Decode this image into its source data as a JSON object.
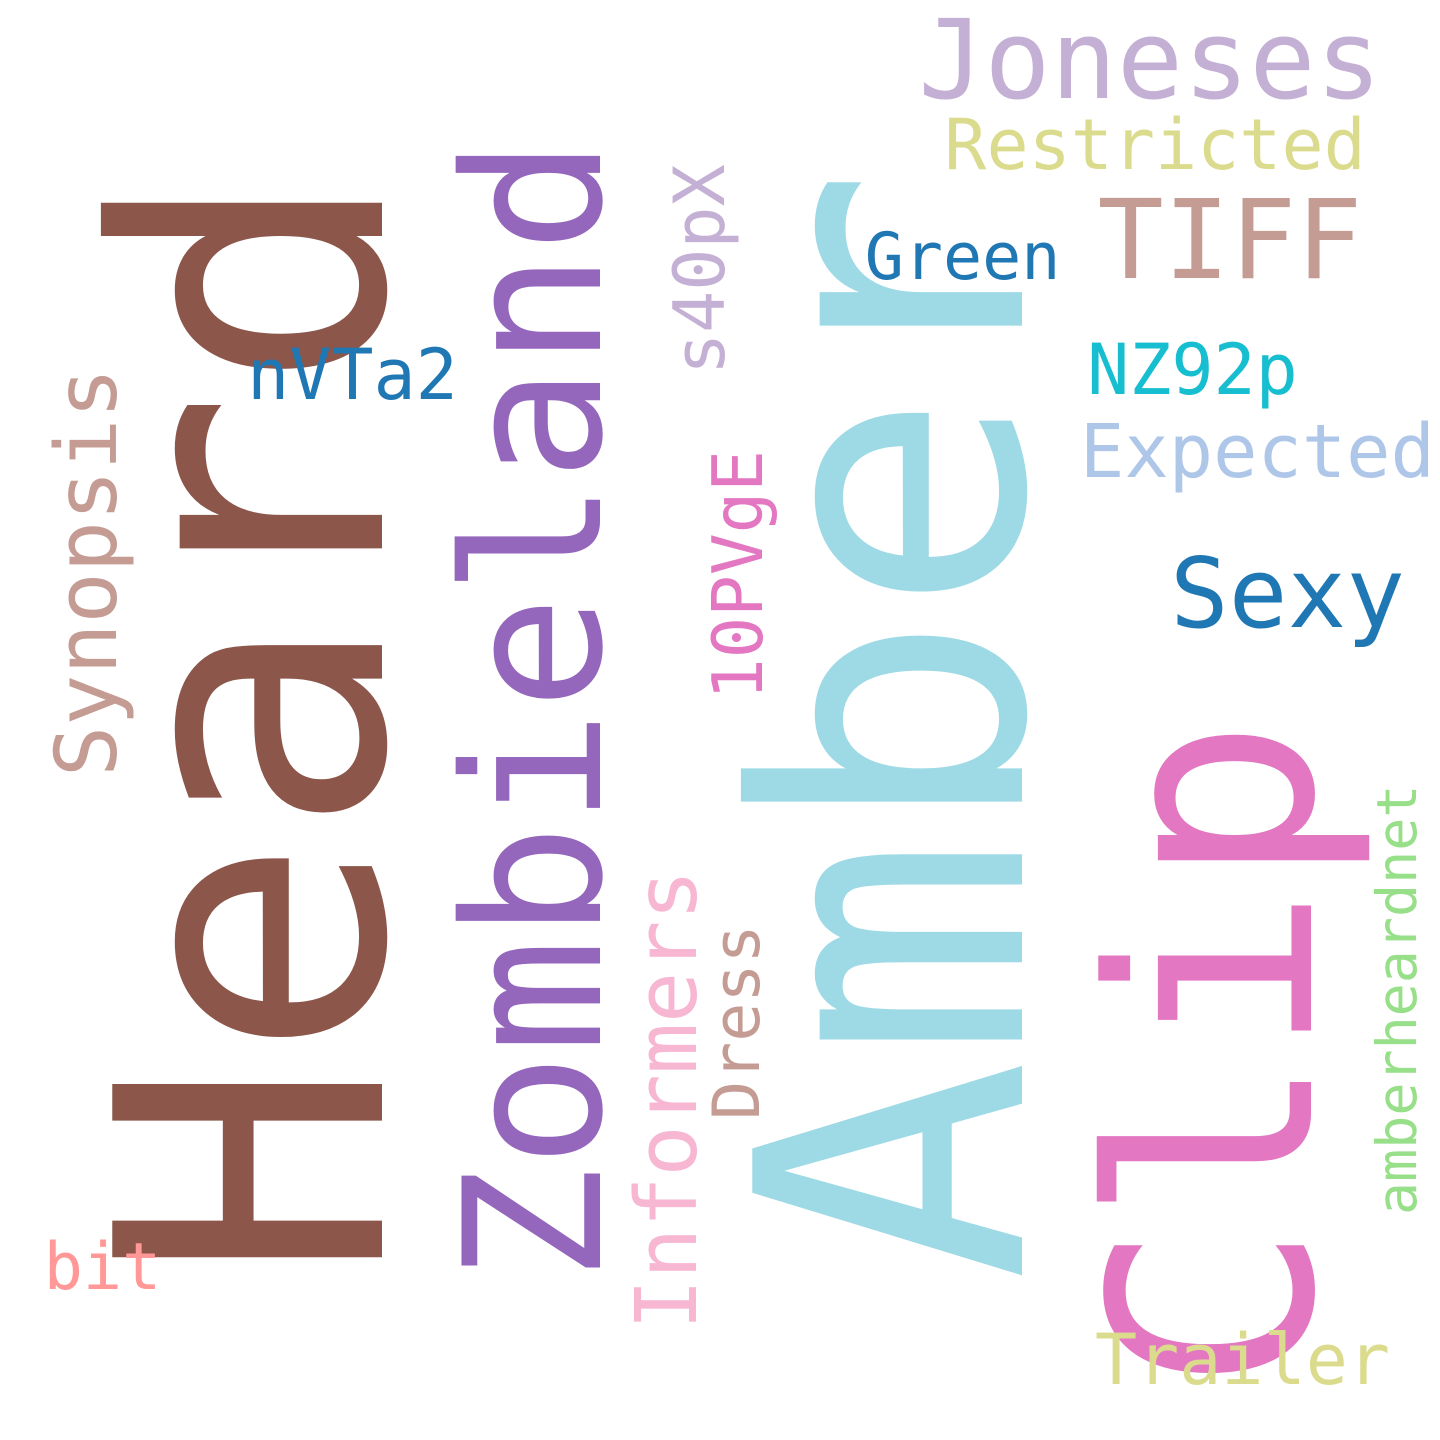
{
  "background_color": "#ffffff",
  "words": [
    {
      "id": "heard",
      "text": "Heard",
      "color": "#8c564b",
      "orientation": "vertical"
    },
    {
      "id": "amber",
      "text": "Amber",
      "color": "#9edae5",
      "orientation": "vertical"
    },
    {
      "id": "zombieland",
      "text": "Zombieland",
      "color": "#9467bd",
      "orientation": "vertical"
    },
    {
      "id": "clip",
      "text": "Clip",
      "color": "#e377c2",
      "orientation": "vertical"
    },
    {
      "id": "joneses",
      "text": "Joneses",
      "color": "#c5b0d5",
      "orientation": "horizontal"
    },
    {
      "id": "restricted",
      "text": "Restricted",
      "color": "#dbdb8d",
      "orientation": "horizontal"
    },
    {
      "id": "tiff",
      "text": "TIFF",
      "color": "#c49c94",
      "orientation": "horizontal"
    },
    {
      "id": "green",
      "text": "Green",
      "color": "#1f77b4",
      "orientation": "horizontal"
    },
    {
      "id": "s40px",
      "text": "s40pX",
      "color": "#c5b0d5",
      "orientation": "vertical"
    },
    {
      "id": "nvta2",
      "text": "nVTa2",
      "color": "#1f77b4",
      "orientation": "horizontal"
    },
    {
      "id": "nz92p",
      "text": "NZ92p",
      "color": "#17becf",
      "orientation": "horizontal"
    },
    {
      "id": "expected",
      "text": "Expected",
      "color": "#aec7e8",
      "orientation": "horizontal"
    },
    {
      "id": "synopsis",
      "text": "Synopsis",
      "color": "#c49c94",
      "orientation": "vertical"
    },
    {
      "id": "10pvge",
      "text": "10PVgE",
      "color": "#e377c2",
      "orientation": "vertical"
    },
    {
      "id": "sexy",
      "text": "Sexy",
      "color": "#1f77b4",
      "orientation": "horizontal"
    },
    {
      "id": "informers",
      "text": "Informers",
      "color": "#f7b6d2",
      "orientation": "vertical"
    },
    {
      "id": "dress",
      "text": "Dress",
      "color": "#c49c94",
      "orientation": "vertical"
    },
    {
      "id": "amberheardnet",
      "text": "amberheardnet",
      "color": "#98df8a",
      "orientation": "vertical"
    },
    {
      "id": "bit",
      "text": "bit",
      "color": "#ff9896",
      "orientation": "horizontal"
    },
    {
      "id": "trailer",
      "text": "Trailer",
      "color": "#dbdb8d",
      "orientation": "horizontal"
    }
  ]
}
